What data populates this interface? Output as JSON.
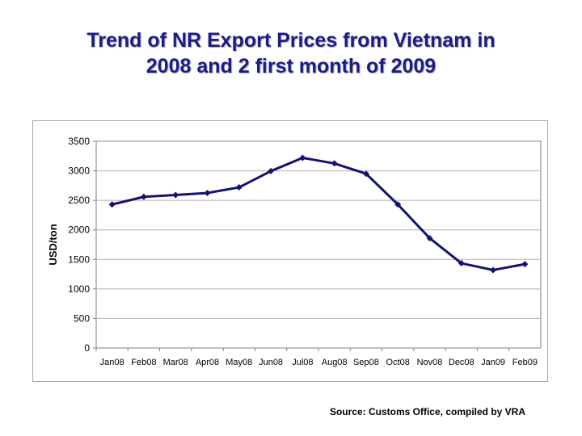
{
  "page": {
    "title_line1": "Trend of NR Export Prices from Vietnam in",
    "title_line2": "2008 and 2 first month of 2009",
    "source_note": "Source: Customs Office, compiled by VRA"
  },
  "chart_data": {
    "type": "line",
    "title": "",
    "xlabel": "",
    "ylabel": "USD/ton",
    "ylim": [
      0,
      3500
    ],
    "yticks": [
      0,
      500,
      1000,
      1500,
      2000,
      2500,
      3000,
      3500
    ],
    "grid": true,
    "legend": "none",
    "categories": [
      "Jan08",
      "Feb08",
      "Mar08",
      "Apr08",
      "May08",
      "Jun08",
      "Jul08",
      "Aug08",
      "Sep08",
      "Oct08",
      "Nov08",
      "Dec08",
      "Jan09",
      "Feb09"
    ],
    "series": [
      {
        "values": [
          2430,
          2560,
          2590,
          2625,
          2720,
          2995,
          3220,
          3125,
          2950,
          2430,
          1860,
          1435,
          1320,
          1420
        ],
        "color": "#141470"
      }
    ]
  }
}
